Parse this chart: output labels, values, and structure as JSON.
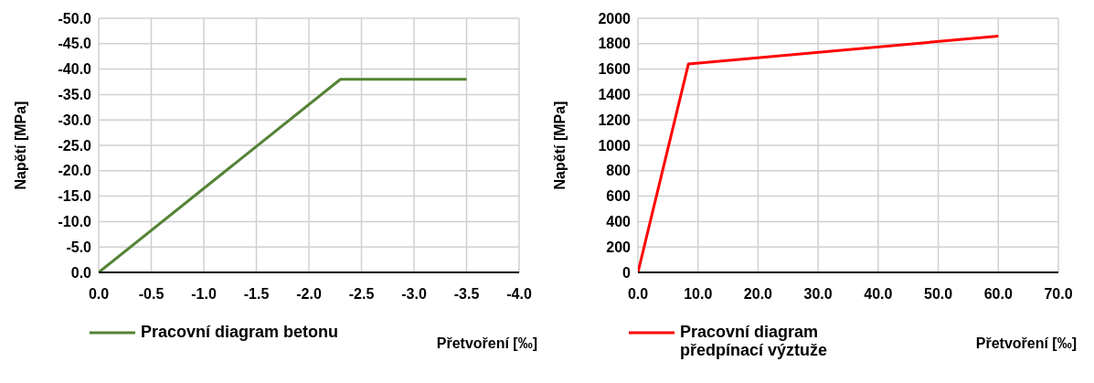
{
  "chart_data": [
    {
      "type": "line",
      "xlabel": "Přetvoření [‰]",
      "ylabel": "Napětí [MPa]",
      "x": [
        0,
        -2.3,
        -3.5
      ],
      "series": [
        {
          "name": "Pracovní diagram betonu",
          "color": "#548235",
          "values": [
            0,
            -38,
            -38
          ]
        }
      ],
      "xlim": [
        0,
        -4
      ],
      "ylim": [
        0,
        -50
      ],
      "xticks": [
        {
          "value": 0,
          "label": "0.0"
        },
        {
          "value": -0.5,
          "label": "-0.5"
        },
        {
          "value": -1,
          "label": "-1.0"
        },
        {
          "value": -1.5,
          "label": "-1.5"
        },
        {
          "value": -2,
          "label": "-2.0"
        },
        {
          "value": -2.5,
          "label": "-2.5"
        },
        {
          "value": -3,
          "label": "-3.0"
        },
        {
          "value": -3.5,
          "label": "-3.5"
        },
        {
          "value": -4,
          "label": "-4.0"
        }
      ],
      "yticks": [
        {
          "value": 0,
          "label": "0.0"
        },
        {
          "value": -5,
          "label": "-5.0"
        },
        {
          "value": -10,
          "label": "-10.0"
        },
        {
          "value": -15,
          "label": "-15.0"
        },
        {
          "value": -20,
          "label": "-20.0"
        },
        {
          "value": -25,
          "label": "-25.0"
        },
        {
          "value": -30,
          "label": "-30.0"
        },
        {
          "value": -35,
          "label": "-35.0"
        },
        {
          "value": -40,
          "label": "-40.0"
        },
        {
          "value": -45,
          "label": "-45.0"
        },
        {
          "value": -50,
          "label": "-50.0"
        }
      ],
      "grid": true,
      "legend": "bottom"
    },
    {
      "type": "line",
      "xlabel": "Přetvoření [‰]",
      "ylabel": "Napětí [MPa]",
      "x": [
        0,
        8.4,
        60
      ],
      "series": [
        {
          "name": "Pracovní diagram předpínací výztuže",
          "color": "#ff0000",
          "values": [
            0,
            1640,
            1860
          ]
        }
      ],
      "xlim": [
        0,
        70
      ],
      "ylim": [
        0,
        2000
      ],
      "xticks": [
        {
          "value": 0,
          "label": "0.0"
        },
        {
          "value": 10,
          "label": "10.0"
        },
        {
          "value": 20,
          "label": "20.0"
        },
        {
          "value": 30,
          "label": "30.0"
        },
        {
          "value": 40,
          "label": "40.0"
        },
        {
          "value": 50,
          "label": "50.0"
        },
        {
          "value": 60,
          "label": "60.0"
        },
        {
          "value": 70,
          "label": "70.0"
        }
      ],
      "yticks": [
        0,
        200,
        400,
        600,
        800,
        1000,
        1200,
        1400,
        1600,
        1800,
        2000
      ],
      "grid": true,
      "legend": "bottom"
    }
  ]
}
